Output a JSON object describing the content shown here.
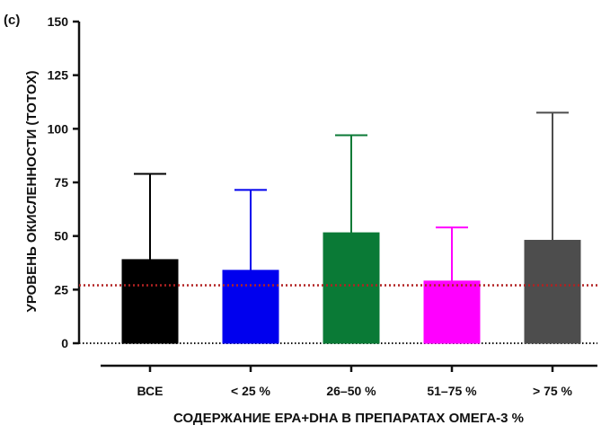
{
  "chart_data": {
    "type": "bar",
    "panel_label": "(c)",
    "categories": [
      "ВСЕ",
      "< 25 %",
      "26–50 %",
      "51–75 %",
      "> 75 %"
    ],
    "values": [
      39,
      34,
      51.5,
      29,
      48
    ],
    "error_upper": [
      79,
      71.5,
      97,
      54,
      107.5
    ],
    "colors": [
      "#000000",
      "#0000ee",
      "#0a7a36",
      "#ff00ff",
      "#4d4d4d"
    ],
    "ylabel": "УРОВЕНЬ ОКИСЛЕННОСТИ (TOTOX)",
    "xlabel": "СОДЕРЖАНИЕ  EPA+DHA  В ПРЕПАРАТАХ ОМЕГА-3 %",
    "ylim": [
      0,
      150
    ],
    "yticks": [
      0,
      25,
      50,
      75,
      100,
      125,
      150
    ],
    "reference_line": {
      "value": 27,
      "color": "#b22222",
      "style": "dotted"
    },
    "grid": false,
    "legend": "none"
  }
}
